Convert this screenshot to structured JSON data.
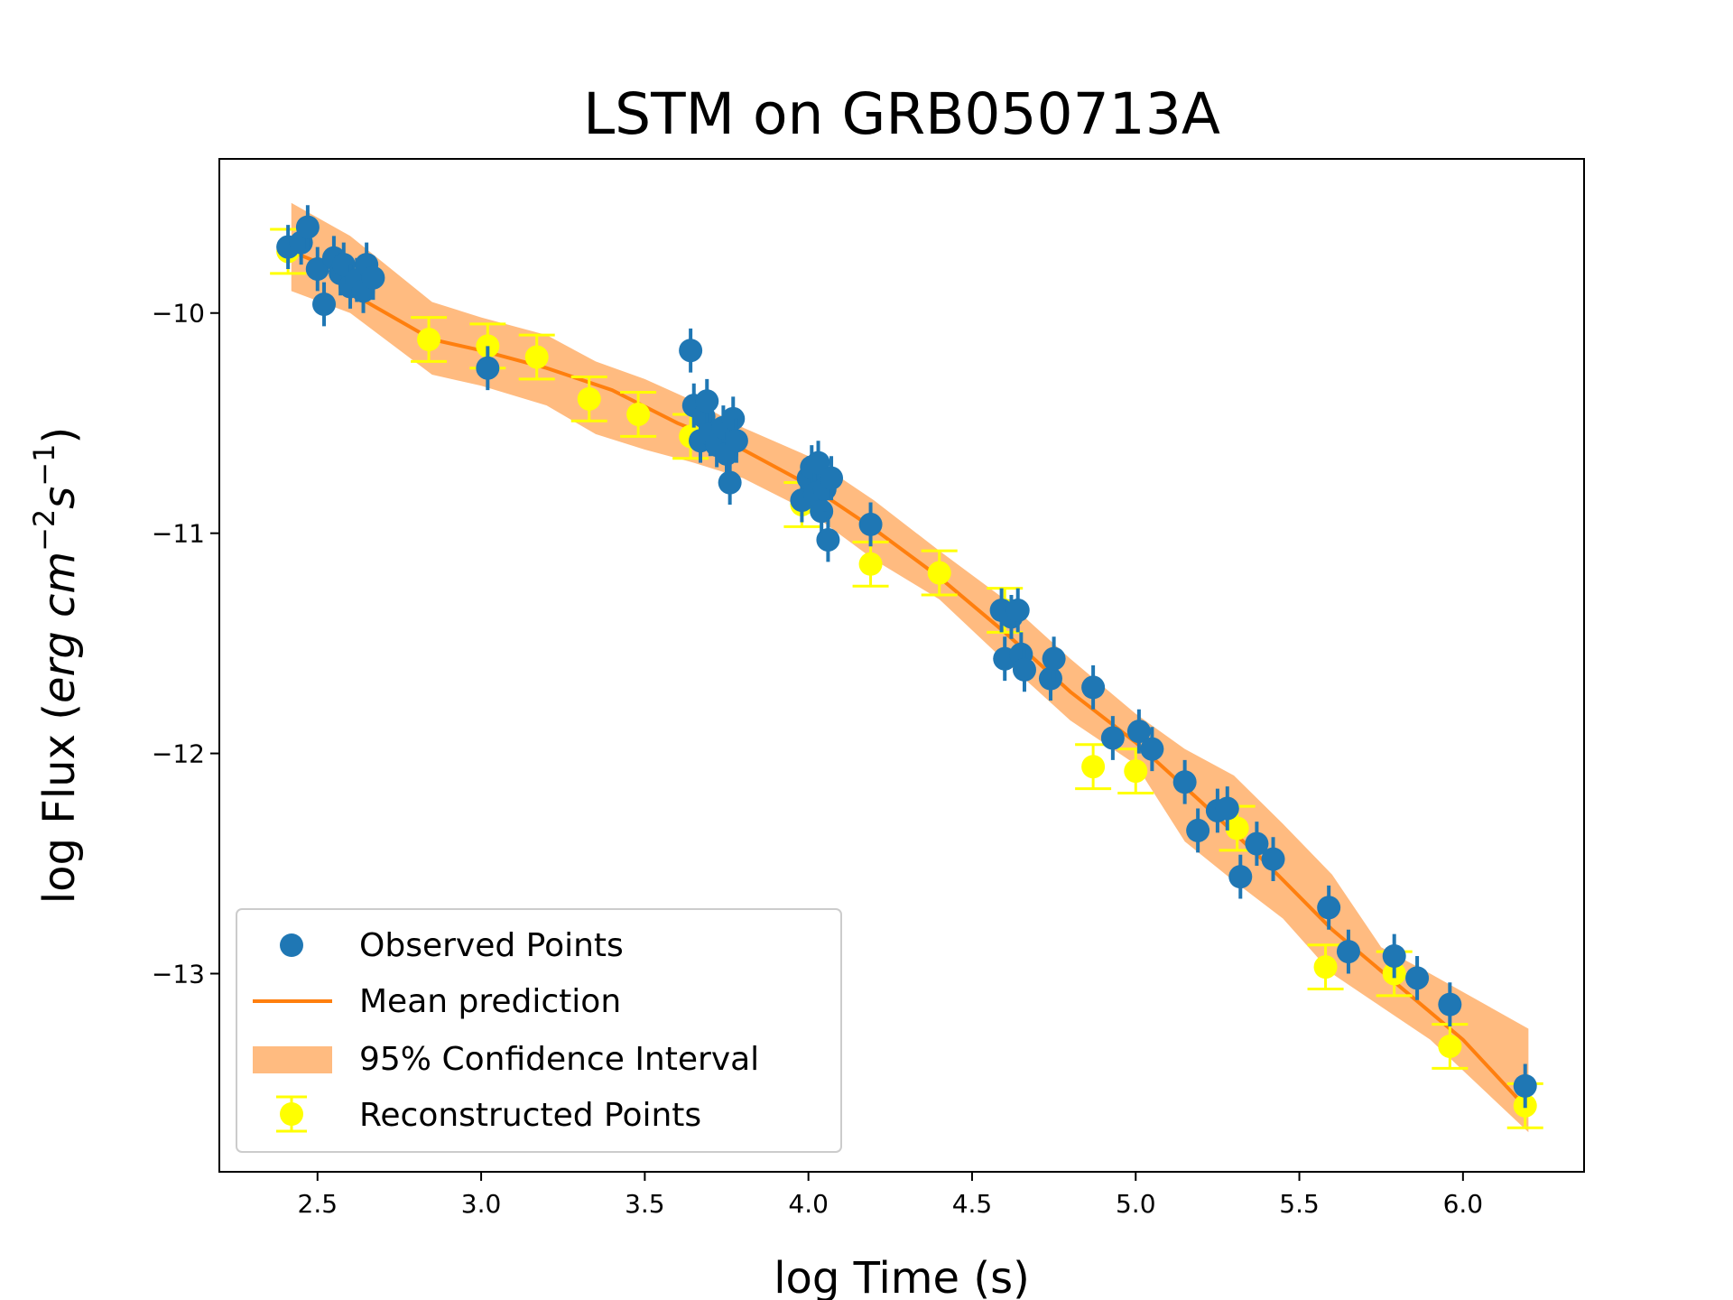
{
  "chart_data": {
    "type": "scatter",
    "title": "LSTM on GRB050713A",
    "xlabel": "log Time (s)",
    "ylabel_prefix": "log Flux (",
    "ylabel_units": "erg cm",
    "ylabel_exp1": "−2",
    "ylabel_s": "s",
    "ylabel_exp2": "−1",
    "ylabel_suffix": ")",
    "xlim": [
      2.2,
      6.37
    ],
    "ylim": [
      -13.9,
      -9.3
    ],
    "xticks": [
      2.5,
      3.0,
      3.5,
      4.0,
      4.5,
      5.0,
      5.5,
      6.0
    ],
    "xtick_labels": [
      "2.5",
      "3.0",
      "3.5",
      "4.0",
      "4.5",
      "5.0",
      "5.5",
      "6.0"
    ],
    "yticks": [
      -10,
      -11,
      -12,
      -13
    ],
    "ytick_labels": [
      "−10",
      "−11",
      "−12",
      "−13"
    ],
    "legend": {
      "position": "lower-left",
      "entries": [
        "Observed Points",
        "Mean prediction",
        "95% Confidence Interval",
        "Reconstructed Points"
      ]
    },
    "colors": {
      "observed": "#1f77b4",
      "mean": "#ff7f0e",
      "band": "#ffbb80",
      "reconstructed": "#ffff00"
    },
    "series": [
      {
        "name": "Mean prediction",
        "x": [
          2.42,
          2.55,
          2.65,
          2.85,
          3.0,
          3.2,
          3.4,
          3.6,
          3.8,
          4.0,
          4.2,
          4.4,
          4.6,
          4.8,
          5.0,
          5.2,
          5.4,
          5.6,
          5.8,
          6.0,
          6.2
        ],
        "y": [
          -9.72,
          -9.8,
          -9.95,
          -10.12,
          -10.17,
          -10.25,
          -10.35,
          -10.5,
          -10.62,
          -10.78,
          -10.98,
          -11.2,
          -11.45,
          -11.72,
          -11.95,
          -12.22,
          -12.5,
          -12.8,
          -13.05,
          -13.3,
          -13.62
        ]
      },
      {
        "name": "95% Confidence Interval",
        "x": [
          2.42,
          2.6,
          2.85,
          3.0,
          3.2,
          3.35,
          3.5,
          3.65,
          3.8,
          4.0,
          4.2,
          4.4,
          4.6,
          4.8,
          5.0,
          5.15,
          5.3,
          5.45,
          5.6,
          5.75,
          5.9,
          6.2
        ],
        "upper": [
          -9.5,
          -9.65,
          -9.95,
          -10.02,
          -10.1,
          -10.22,
          -10.3,
          -10.4,
          -10.52,
          -10.65,
          -10.85,
          -11.08,
          -11.3,
          -11.57,
          -11.82,
          -11.98,
          -12.1,
          -12.32,
          -12.55,
          -12.88,
          -13.0,
          -13.25
        ],
        "lower": [
          -9.9,
          -10.0,
          -10.28,
          -10.33,
          -10.42,
          -10.55,
          -10.62,
          -10.68,
          -10.75,
          -10.9,
          -11.12,
          -11.3,
          -11.58,
          -11.85,
          -12.05,
          -12.4,
          -12.58,
          -12.75,
          -13.0,
          -13.15,
          -13.3,
          -13.72
        ]
      },
      {
        "name": "Observed Points",
        "x": [
          2.41,
          2.45,
          2.47,
          2.5,
          2.52,
          2.55,
          2.57,
          2.58,
          2.6,
          2.62,
          2.64,
          2.65,
          2.67,
          3.02,
          3.64,
          3.65,
          3.67,
          3.68,
          3.69,
          3.7,
          3.72,
          3.74,
          3.75,
          3.76,
          3.77,
          3.78,
          3.98,
          4.0,
          4.01,
          4.02,
          4.03,
          4.04,
          4.05,
          4.06,
          4.07,
          4.19,
          4.59,
          4.6,
          4.62,
          4.64,
          4.65,
          4.66,
          4.74,
          4.75,
          4.87,
          4.93,
          5.01,
          5.05,
          5.15,
          5.19,
          5.25,
          5.28,
          5.32,
          5.37,
          5.42,
          5.59,
          5.65,
          5.79,
          5.86,
          5.96,
          6.19
        ],
        "y": [
          -9.7,
          -9.68,
          -9.61,
          -9.8,
          -9.96,
          -9.75,
          -9.82,
          -9.78,
          -9.88,
          -9.85,
          -9.9,
          -9.78,
          -9.84,
          -10.25,
          -10.17,
          -10.42,
          -10.58,
          -10.47,
          -10.4,
          -10.55,
          -10.6,
          -10.52,
          -10.64,
          -10.77,
          -10.48,
          -10.58,
          -10.85,
          -10.75,
          -10.7,
          -10.82,
          -10.68,
          -10.9,
          -10.8,
          -11.03,
          -10.75,
          -10.96,
          -11.35,
          -11.57,
          -11.38,
          -11.35,
          -11.55,
          -11.62,
          -11.66,
          -11.57,
          -11.7,
          -11.93,
          -11.9,
          -11.98,
          -12.13,
          -12.35,
          -12.26,
          -12.25,
          -12.56,
          -12.41,
          -12.48,
          -12.7,
          -12.9,
          -12.92,
          -13.02,
          -13.14,
          -13.51
        ],
        "err": [
          0.1,
          0.1,
          0.1,
          0.1,
          0.1,
          0.1,
          0.1,
          0.1,
          0.1,
          0.1,
          0.1,
          0.1,
          0.1,
          0.1,
          0.1,
          0.1,
          0.1,
          0.1,
          0.1,
          0.1,
          0.1,
          0.1,
          0.1,
          0.1,
          0.1,
          0.1,
          0.1,
          0.1,
          0.1,
          0.1,
          0.1,
          0.1,
          0.1,
          0.1,
          0.1,
          0.1,
          0.1,
          0.1,
          0.1,
          0.1,
          0.1,
          0.1,
          0.1,
          0.1,
          0.1,
          0.1,
          0.1,
          0.1,
          0.1,
          0.1,
          0.1,
          0.1,
          0.1,
          0.1,
          0.1,
          0.1,
          0.1,
          0.1,
          0.1,
          0.1,
          0.1
        ]
      },
      {
        "name": "Reconstructed Points",
        "x": [
          2.41,
          2.84,
          3.02,
          3.17,
          3.33,
          3.48,
          3.64,
          3.98,
          4.19,
          4.4,
          4.6,
          4.87,
          5.0,
          5.31,
          5.58,
          5.79,
          5.96,
          6.19
        ],
        "y": [
          -9.72,
          -10.12,
          -10.15,
          -10.2,
          -10.39,
          -10.46,
          -10.56,
          -10.87,
          -11.14,
          -11.18,
          -11.35,
          -12.06,
          -12.08,
          -12.34,
          -12.97,
          -13.0,
          -13.33,
          -13.6
        ],
        "err": [
          0.1,
          0.1,
          0.1,
          0.1,
          0.1,
          0.1,
          0.1,
          0.1,
          0.1,
          0.1,
          0.1,
          0.1,
          0.1,
          0.1,
          0.1,
          0.1,
          0.1,
          0.1
        ]
      }
    ]
  }
}
